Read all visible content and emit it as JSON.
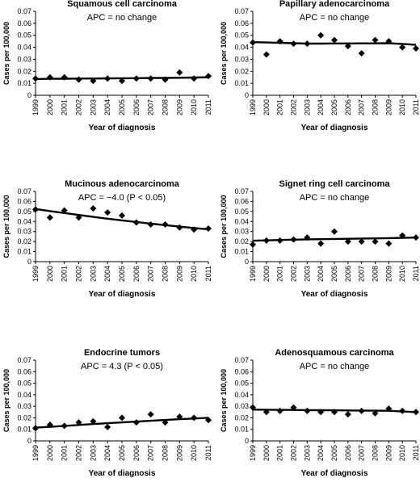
{
  "chart_data": [
    {
      "type": "scatter",
      "title": "Squamous cell carcinoma",
      "annotation": "APC = no change",
      "xlabel": "Year of diagnosis",
      "ylabel": "Cases per 100,000",
      "x": [
        "1999",
        "2000",
        "2001",
        "2002",
        "2003",
        "2004",
        "2005",
        "2006",
        "2007",
        "2008",
        "2009",
        "2010",
        "2011"
      ],
      "ylim": [
        0,
        0.07
      ],
      "yticks": [
        "0",
        "0.01",
        "0.02",
        "0.03",
        "0.04",
        "0.05",
        "0.06",
        "0.07"
      ],
      "series": [
        {
          "kind": "points",
          "values": [
            0.014,
            0.015,
            0.015,
            0.013,
            0.012,
            0.014,
            0.012,
            0.014,
            0.014,
            0.013,
            0.019,
            0.014,
            0.016
          ]
        },
        {
          "kind": "trend",
          "values": [
            0.0135,
            0.0137,
            0.0138,
            0.0139,
            0.014,
            0.0141,
            0.0142,
            0.0143,
            0.0144,
            0.0145,
            0.0146,
            0.0148,
            0.015
          ]
        }
      ]
    },
    {
      "type": "scatter",
      "title": "Papillary adenocarcinoma",
      "annotation": "APC = no change",
      "xlabel": "Year of diagnosis",
      "ylabel": "Cases per 100,000",
      "x": [
        "1999",
        "2000",
        "2001",
        "2002",
        "2003",
        "2004",
        "2005",
        "2006",
        "2007",
        "2008",
        "2009",
        "2010",
        "2011"
      ],
      "ylim": [
        0,
        0.07
      ],
      "yticks": [
        "0",
        "0.01",
        "0.02",
        "0.03",
        "0.04",
        "0.05",
        "0.06",
        "0.07"
      ],
      "series": [
        {
          "kind": "points",
          "values": [
            0.044,
            0.034,
            0.045,
            0.043,
            0.043,
            0.05,
            0.046,
            0.041,
            0.035,
            0.046,
            0.045,
            0.04,
            0.039
          ]
        },
        {
          "kind": "trend",
          "values": [
            0.0443,
            0.044,
            0.0437,
            0.0434,
            0.0431,
            0.0431,
            0.0432,
            0.0432,
            0.0433,
            0.0433,
            0.0434,
            0.0428,
            0.0421
          ]
        }
      ]
    },
    {
      "type": "scatter",
      "title": "Mucinous adenocarcinoma",
      "annotation": "APC = −4.0 (P < 0.05)",
      "xlabel": "Year of diagnosis",
      "ylabel": "Cases per 100,000",
      "x": [
        "1999",
        "2000",
        "2001",
        "2002",
        "2003",
        "2004",
        "2005",
        "2006",
        "2007",
        "2008",
        "2009",
        "2010",
        "2011"
      ],
      "ylim": [
        0,
        0.07
      ],
      "yticks": [
        "0",
        "0.01",
        "0.02",
        "0.03",
        "0.04",
        "0.05",
        "0.06",
        "0.07"
      ],
      "series": [
        {
          "kind": "points",
          "values": [
            0.052,
            0.044,
            0.051,
            0.044,
            0.053,
            0.049,
            0.046,
            0.039,
            0.037,
            0.037,
            0.034,
            0.032,
            0.033
          ]
        },
        {
          "kind": "trend",
          "values": [
            0.0525,
            0.0504,
            0.0484,
            0.0465,
            0.0446,
            0.0428,
            0.0411,
            0.0395,
            0.0379,
            0.0364,
            0.0349,
            0.0335,
            0.0322
          ]
        }
      ]
    },
    {
      "type": "scatter",
      "title": "Signet ring cell carcinoma",
      "annotation": "APC = no change",
      "xlabel": "Year of diagnosis",
      "ylabel": "Cases per 100,000",
      "x": [
        "1999",
        "2000",
        "2001",
        "2002",
        "2003",
        "2004",
        "2005",
        "2006",
        "2007",
        "2008",
        "2009",
        "2010",
        "2011"
      ],
      "ylim": [
        0,
        0.07
      ],
      "yticks": [
        "0",
        "0.01",
        "0.02",
        "0.03",
        "0.04",
        "0.05",
        "0.06",
        "0.07"
      ],
      "series": [
        {
          "kind": "points",
          "values": [
            0.017,
            0.021,
            0.021,
            0.022,
            0.024,
            0.018,
            0.03,
            0.02,
            0.02,
            0.02,
            0.018,
            0.026,
            0.024
          ]
        },
        {
          "kind": "trend",
          "values": [
            0.0208,
            0.0212,
            0.0216,
            0.0219,
            0.0222,
            0.0224,
            0.0226,
            0.0228,
            0.023,
            0.0232,
            0.0234,
            0.0237,
            0.024
          ]
        }
      ]
    },
    {
      "type": "scatter",
      "title": "Endocrine tumors",
      "annotation": "APC = 4.3 (P < 0.05)",
      "xlabel": "Year of diagnosis",
      "ylabel": "Cases per 100,000",
      "x": [
        "1999",
        "2000",
        "2001",
        "2002",
        "2003",
        "2004",
        "2005",
        "2006",
        "2007",
        "2008",
        "2009",
        "2010",
        "2011"
      ],
      "ylim": [
        0,
        0.07
      ],
      "yticks": [
        "0",
        "0.01",
        "0.02",
        "0.03",
        "0.04",
        "0.05",
        "0.06",
        "0.07"
      ],
      "series": [
        {
          "kind": "points",
          "values": [
            0.011,
            0.014,
            0.013,
            0.016,
            0.017,
            0.012,
            0.02,
            0.016,
            0.023,
            0.016,
            0.021,
            0.02,
            0.018
          ]
        },
        {
          "kind": "trend",
          "values": [
            0.0115,
            0.0122,
            0.013,
            0.0138,
            0.0146,
            0.0153,
            0.016,
            0.0167,
            0.0174,
            0.0181,
            0.0188,
            0.0194,
            0.02
          ]
        }
      ]
    },
    {
      "type": "scatter",
      "title": "Adenosquamous carcinoma",
      "annotation": "APC = no change",
      "xlabel": "Year of diagnosis",
      "ylabel": "Cases per 100,000",
      "x": [
        "1999",
        "2000",
        "2001",
        "2002",
        "2003",
        "2004",
        "2005",
        "2006",
        "2007",
        "2008",
        "2009",
        "2010",
        "2011"
      ],
      "ylim": [
        0,
        0.07
      ],
      "yticks": [
        "0",
        "0.01",
        "0.02",
        "0.03",
        "0.04",
        "0.05",
        "0.06",
        "0.07"
      ],
      "series": [
        {
          "kind": "points",
          "values": [
            0.029,
            0.025,
            0.026,
            0.029,
            0.026,
            0.025,
            0.025,
            0.023,
            0.026,
            0.024,
            0.028,
            0.026,
            0.025
          ]
        },
        {
          "kind": "trend",
          "values": [
            0.0271,
            0.027,
            0.0269,
            0.0268,
            0.0267,
            0.0266,
            0.0265,
            0.0264,
            0.0263,
            0.0262,
            0.0261,
            0.0255,
            0.025
          ]
        }
      ]
    }
  ],
  "colors": {
    "points": "#000000",
    "trend": "#000000",
    "axis": "#000000",
    "grid": "#d9d9d9"
  }
}
